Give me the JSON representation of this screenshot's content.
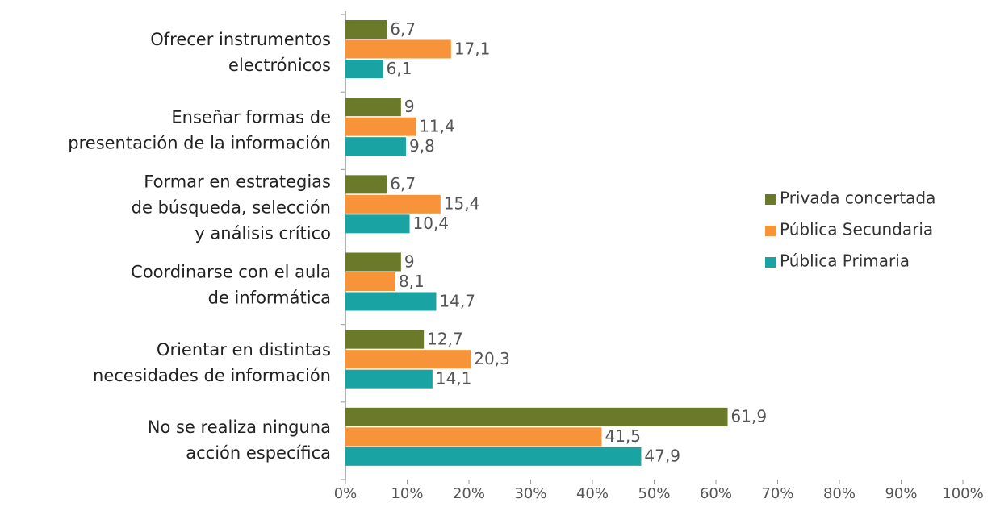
{
  "chart_data": {
    "type": "hbar",
    "categories": [
      [
        "Ofrecer instrumentos",
        "electrónicos"
      ],
      [
        "Enseñar formas de",
        "presentación de la información"
      ],
      [
        "Formar en estrategias",
        "de búsqueda, selección",
        "y análisis crítico"
      ],
      [
        "Coordinarse con el aula",
        "de informática"
      ],
      [
        "Orientar en distintas",
        "necesidades de información"
      ],
      [
        "No se realiza ninguna",
        "acción específica"
      ]
    ],
    "series": [
      {
        "name": "Privada concertada",
        "color": "#6b7a2a",
        "values": [
          6.7,
          9,
          6.7,
          9,
          12.7,
          61.9
        ],
        "value_labels": [
          "6,7",
          "9",
          "6,7",
          "9",
          "12,7",
          "61,9"
        ]
      },
      {
        "name": "Pública Secundaria",
        "color": "#f7943a",
        "values": [
          17.1,
          11.4,
          15.4,
          8.1,
          20.3,
          41.5
        ],
        "value_labels": [
          "17,1",
          "11,4",
          "15,4",
          "8,1",
          "20,3",
          "41,5"
        ]
      },
      {
        "name": "Pública Primaria",
        "color": "#1aa3a3",
        "values": [
          6.1,
          9.8,
          10.4,
          14.7,
          14.1,
          47.9
        ],
        "value_labels": [
          "6,1",
          "9,8",
          "10,4",
          "14,7",
          "14,1",
          "47,9"
        ]
      }
    ],
    "xlim": [
      0,
      100
    ],
    "xticks": [
      {
        "value": 0,
        "label": "0%"
      },
      {
        "value": 10,
        "label": "10%"
      },
      {
        "value": 20,
        "label": "20%"
      },
      {
        "value": 30,
        "label": "30%"
      },
      {
        "value": 40,
        "label": "40%"
      },
      {
        "value": 50,
        "label": "50%"
      },
      {
        "value": 60,
        "label": "60%"
      },
      {
        "value": 70,
        "label": "70%"
      },
      {
        "value": 80,
        "label": "80%"
      },
      {
        "value": 90,
        "label": "90%"
      },
      {
        "value": 100,
        "label": "100%"
      }
    ],
    "legend": "right"
  }
}
